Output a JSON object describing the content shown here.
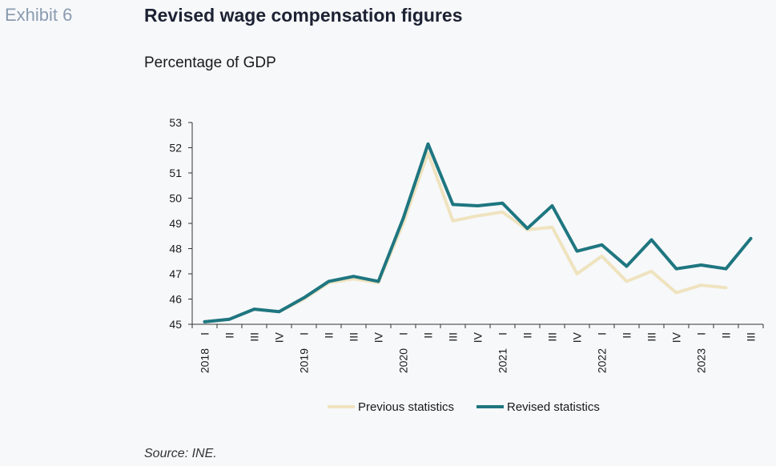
{
  "header": {
    "exhibit": "Exhibit 6",
    "title": "Revised wage compensation figures",
    "subtitle": "Percentage of GDP"
  },
  "footer": {
    "source": "Source: INE."
  },
  "colors": {
    "previous": "#efe3bf",
    "revised": "#1e7680",
    "axis": "#333333"
  },
  "chart_data": {
    "type": "line",
    "categories": [
      "I",
      "II",
      "III",
      "IV",
      "I",
      "II",
      "III",
      "IV",
      "I",
      "II",
      "III",
      "IV",
      "I",
      "II",
      "III",
      "IV",
      "I",
      "II",
      "III",
      "IV",
      "I",
      "II",
      "III"
    ],
    "year_labels": [
      {
        "index": 0,
        "label": "2018"
      },
      {
        "index": 4,
        "label": "2019"
      },
      {
        "index": 8,
        "label": "2020"
      },
      {
        "index": 12,
        "label": "2021"
      },
      {
        "index": 16,
        "label": "2022"
      },
      {
        "index": 20,
        "label": "2023"
      }
    ],
    "ylim": [
      45,
      53
    ],
    "yticks": [
      45,
      46,
      47,
      48,
      49,
      50,
      51,
      52,
      53
    ],
    "series": [
      {
        "name": "Previous statistics",
        "color_key": "previous",
        "values": [
          45.1,
          45.2,
          45.6,
          45.5,
          46.0,
          46.65,
          46.8,
          46.65,
          49.0,
          51.8,
          49.1,
          49.3,
          49.45,
          48.75,
          48.85,
          47.0,
          47.7,
          46.7,
          47.1,
          46.25,
          46.55,
          46.45,
          null
        ]
      },
      {
        "name": "Revised statistics",
        "color_key": "revised",
        "values": [
          45.1,
          45.2,
          45.6,
          45.5,
          46.05,
          46.7,
          46.9,
          46.7,
          49.2,
          52.15,
          49.75,
          49.7,
          49.8,
          48.8,
          49.7,
          47.9,
          48.15,
          47.3,
          48.35,
          47.2,
          47.35,
          47.2,
          48.4
        ]
      }
    ],
    "legend_position": "bottom",
    "grid": false
  }
}
